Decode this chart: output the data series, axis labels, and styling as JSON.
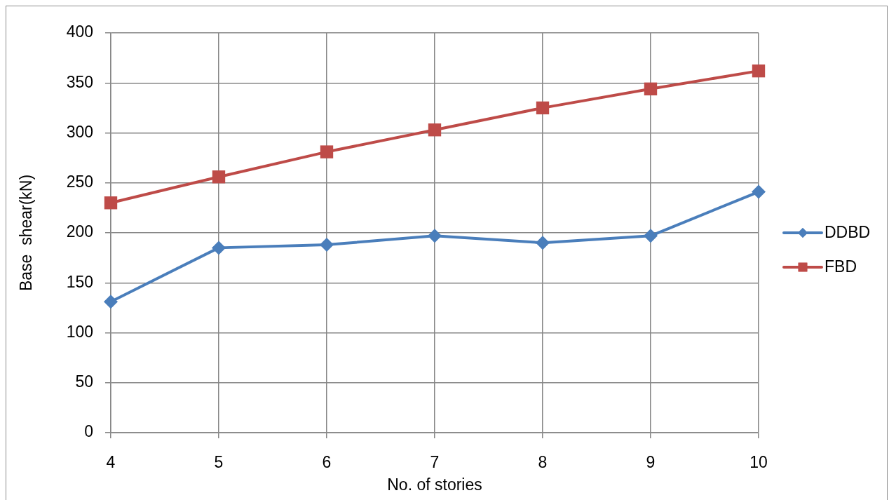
{
  "chart_data": {
    "type": "line",
    "xlabel": "No. of stories",
    "ylabel": "Base  shear(kN)",
    "categories": [
      "4",
      "5",
      "6",
      "7",
      "8",
      "9",
      "10"
    ],
    "series": [
      {
        "name": "DDBD",
        "color": "#4a7ebb",
        "marker": "diamond",
        "values": [
          131,
          185,
          188,
          197,
          190,
          197,
          241
        ]
      },
      {
        "name": "FBD",
        "color": "#be4b48",
        "marker": "square",
        "values": [
          230,
          256,
          281,
          303,
          325,
          344,
          362
        ]
      }
    ],
    "ylim": [
      0,
      400
    ],
    "yticks": [
      0,
      50,
      100,
      150,
      200,
      250,
      300,
      350,
      400
    ],
    "grid": true,
    "legend": "right",
    "line_style": "solid"
  }
}
